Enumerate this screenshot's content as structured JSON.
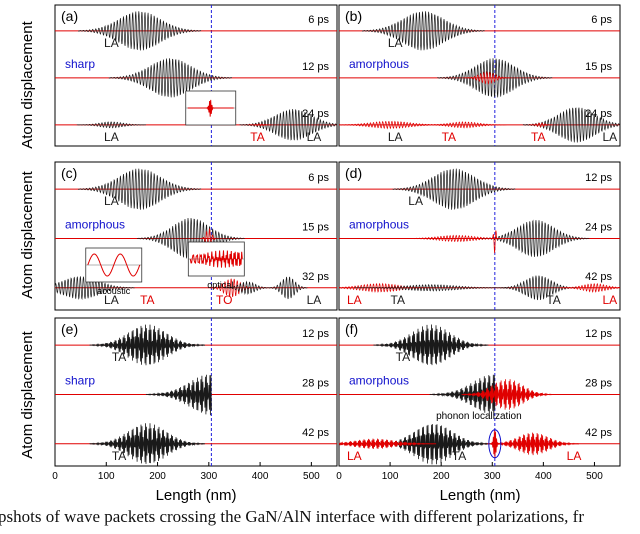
{
  "figure": {
    "y_axis_label": "Atom displacement",
    "x_axis_label": "Length (nm)",
    "caption_fragment": "pshots of wave packets crossing the GaN/AlN interface with different polarizations, fr"
  },
  "colors": {
    "packet": "#1a1a1a",
    "packet_fill": "#555555",
    "red": "#e00000",
    "blue": "#1010cc",
    "interface_line": "#2020dd",
    "axis": "#000000"
  },
  "chart_data": [
    {
      "type": "line",
      "panel": "(a)",
      "interface": "sharp",
      "xlim": [
        0,
        550
      ],
      "xticks": [],
      "x_tick_labels": [],
      "interface_x": 305,
      "rows": [
        {
          "time": "6 ps",
          "labels": [
            {
              "text": "LA",
              "x": 110,
              "color": "black"
            }
          ],
          "packets": [
            {
              "center": 165,
              "width": 160,
              "amp": 1.0,
              "color": "black",
              "kind": "fine"
            }
          ]
        },
        {
          "time": "12 ps",
          "region_label": "sharp",
          "packets": [
            {
              "center": 225,
              "width": 160,
              "amp": 1.0,
              "color": "black",
              "kind": "fine"
            }
          ]
        },
        {
          "time": "24 ps",
          "labels": [
            {
              "text": "LA",
              "x": 110,
              "color": "black"
            },
            {
              "text": "TA",
              "x": 395,
              "color": "red"
            },
            {
              "text": "LA",
              "x": 505,
              "color": "black"
            }
          ],
          "packets": [
            {
              "center": 110,
              "width": 90,
              "amp": 0.15,
              "color": "black",
              "kind": "fine"
            },
            {
              "center": 465,
              "width": 140,
              "amp": 0.8,
              "color": "black",
              "kind": "fine"
            },
            {
              "center": 400,
              "width": 30,
              "amp": 0.05,
              "color": "red",
              "kind": "fine"
            }
          ]
        }
      ],
      "insets": [
        {
          "kind": "spike"
        }
      ]
    },
    {
      "type": "line",
      "panel": "(b)",
      "interface": "amorphous",
      "xlim": [
        0,
        550
      ],
      "xticks": [],
      "x_tick_labels": [],
      "interface_x": 305,
      "rows": [
        {
          "time": "6 ps",
          "labels": [
            {
              "text": "LA",
              "x": 110,
              "color": "black"
            }
          ],
          "packets": [
            {
              "center": 165,
              "width": 160,
              "amp": 1.0,
              "color": "black",
              "kind": "fine"
            }
          ]
        },
        {
          "time": "15 ps",
          "region_label": "amorphous",
          "packets": [
            {
              "center": 305,
              "width": 150,
              "amp": 1.0,
              "color": "black",
              "kind": "fine"
            },
            {
              "center": 290,
              "width": 60,
              "amp": 0.3,
              "color": "red",
              "kind": "fine"
            }
          ]
        },
        {
          "time": "24 ps",
          "labels": [
            {
              "text": "LA",
              "x": 110,
              "color": "black"
            },
            {
              "text": "TA",
              "x": 215,
              "color": "red"
            },
            {
              "text": "TA",
              "x": 390,
              "color": "red"
            },
            {
              "text": "LA",
              "x": 530,
              "color": "black"
            }
          ],
          "packets": [
            {
              "center": 465,
              "width": 140,
              "amp": 0.9,
              "color": "black",
              "kind": "fine"
            },
            {
              "center": 100,
              "width": 150,
              "amp": 0.18,
              "color": "red",
              "kind": "fine"
            },
            {
              "center": 245,
              "width": 110,
              "amp": 0.15,
              "color": "red",
              "kind": "fine"
            },
            {
              "center": 395,
              "width": 30,
              "amp": 0.1,
              "color": "red",
              "kind": "fine"
            }
          ]
        }
      ]
    },
    {
      "type": "line",
      "panel": "(c)",
      "interface": "amorphous",
      "xlim": [
        0,
        550
      ],
      "xticks": [],
      "x_tick_labels": [],
      "interface_x": 305,
      "rows": [
        {
          "time": "6 ps",
          "labels": [
            {
              "text": "LA",
              "x": 110,
              "color": "black"
            }
          ],
          "packets": [
            {
              "center": 165,
              "width": 160,
              "amp": 1.0,
              "color": "black",
              "kind": "fine"
            }
          ]
        },
        {
          "time": "15 ps",
          "region_label": "amorphous",
          "packets": [
            {
              "center": 265,
              "width": 140,
              "amp": 1.0,
              "color": "black",
              "kind": "fine"
            },
            {
              "center": 300,
              "width": 20,
              "amp": 0.5,
              "color": "red",
              "kind": "fine"
            }
          ]
        },
        {
          "time": "32 ps",
          "labels": [
            {
              "text": "LA",
              "x": 110,
              "color": "black"
            },
            {
              "text": "TA",
              "x": 180,
              "color": "red"
            },
            {
              "text": "TO",
              "x": 330,
              "color": "red"
            },
            {
              "text": "LA",
              "x": 505,
              "color": "black"
            }
          ],
          "packets": [
            {
              "center": 50,
              "width": 140,
              "amp": 0.55,
              "color": "black",
              "kind": "fine"
            },
            {
              "center": 345,
              "width": 60,
              "amp": 0.45,
              "color": "red",
              "kind": "fine"
            },
            {
              "center": 375,
              "width": 60,
              "amp": 0.3,
              "color": "black",
              "kind": "fine"
            },
            {
              "center": 455,
              "width": 50,
              "amp": 0.55,
              "color": "black",
              "kind": "fine"
            }
          ]
        }
      ],
      "insets": [
        {
          "label": "acoustic",
          "kind": "sine"
        },
        {
          "label": "optical",
          "kind": "noise"
        }
      ]
    },
    {
      "type": "line",
      "panel": "(d)",
      "interface": "amorphous",
      "xlim": [
        0,
        550
      ],
      "xticks": [],
      "x_tick_labels": [],
      "interface_x": 305,
      "rows": [
        {
          "time": "12 ps",
          "labels": [
            {
              "text": "LA",
              "x": 150,
              "color": "black"
            }
          ],
          "packets": [
            {
              "center": 225,
              "width": 160,
              "amp": 1.0,
              "color": "black",
              "kind": "fine"
            }
          ]
        },
        {
          "time": "24 ps",
          "region_label": "amorphous",
          "packets": [
            {
              "center": 385,
              "width": 140,
              "amp": 0.9,
              "color": "black",
              "kind": "fine"
            },
            {
              "center": 230,
              "width": 140,
              "amp": 0.15,
              "color": "red",
              "kind": "fine"
            },
            {
              "center": 305,
              "width": 8,
              "amp": 0.7,
              "color": "red",
              "kind": "fine"
            }
          ]
        },
        {
          "time": "42 ps",
          "labels": [
            {
              "text": "LA",
              "x": 30,
              "color": "red"
            },
            {
              "text": "TA",
              "x": 115,
              "color": "black"
            },
            {
              "text": "TA",
              "x": 420,
              "color": "black"
            },
            {
              "text": "LA",
              "x": 530,
              "color": "red"
            }
          ],
          "packets": [
            {
              "center": 80,
              "width": 150,
              "amp": 0.2,
              "color": "red",
              "kind": "fine"
            },
            {
              "center": 180,
              "width": 200,
              "amp": 0.15,
              "color": "black",
              "kind": "fine"
            },
            {
              "center": 390,
              "width": 100,
              "amp": 0.6,
              "color": "black",
              "kind": "fine"
            },
            {
              "center": 500,
              "width": 90,
              "amp": 0.2,
              "color": "red",
              "kind": "fine"
            }
          ]
        }
      ]
    },
    {
      "type": "area",
      "panel": "(e)",
      "interface": "sharp",
      "xlim": [
        0,
        550
      ],
      "xticks": [
        0,
        100,
        200,
        300,
        400,
        500
      ],
      "x_tick_labels": [
        "0",
        "100",
        "200",
        "300",
        "400",
        "500"
      ],
      "interface_x": 305,
      "rows": [
        {
          "time": "12 ps",
          "labels": [
            {
              "text": "TA",
              "x": 125,
              "color": "black"
            }
          ],
          "packets": [
            {
              "center": 180,
              "width": 150,
              "amp": 1.0,
              "color": "black",
              "kind": "dense"
            }
          ]
        },
        {
          "time": "28 ps",
          "region_label": "sharp",
          "packets": [
            {
              "center": 305,
              "width": 170,
              "amp": 1.0,
              "color": "black",
              "kind": "dense",
              "cut_at": 305
            }
          ]
        },
        {
          "time": "42 ps",
          "labels": [
            {
              "text": "TA",
              "x": 125,
              "color": "black"
            }
          ],
          "packets": [
            {
              "center": 180,
              "width": 150,
              "amp": 1.0,
              "color": "black",
              "kind": "dense"
            }
          ]
        }
      ]
    },
    {
      "type": "area",
      "panel": "(f)",
      "interface": "amorphous",
      "xlim": [
        0,
        550
      ],
      "xticks": [
        0,
        100,
        200,
        300,
        400,
        500
      ],
      "x_tick_labels": [
        "0",
        "100",
        "200",
        "300",
        "400",
        "500"
      ],
      "interface_x": 305,
      "rows": [
        {
          "time": "12 ps",
          "labels": [
            {
              "text": "TA",
              "x": 125,
              "color": "black"
            }
          ],
          "packets": [
            {
              "center": 180,
              "width": 150,
              "amp": 1.0,
              "color": "black",
              "kind": "dense"
            }
          ]
        },
        {
          "time": "28 ps",
          "region_label": "amorphous",
          "packets": [
            {
              "center": 305,
              "width": 170,
              "amp": 1.0,
              "color": "black",
              "kind": "dense",
              "cut_at": 305
            },
            {
              "center": 330,
              "width": 120,
              "amp": 0.75,
              "color": "red",
              "kind": "dense"
            }
          ]
        },
        {
          "time": "42 ps",
          "labels": [
            {
              "text": "LA",
              "x": 30,
              "color": "red"
            },
            {
              "text": "TA",
              "x": 235,
              "color": "black"
            },
            {
              "text": "LA",
              "x": 460,
              "color": "red"
            }
          ],
          "packets": [
            {
              "center": 185,
              "width": 150,
              "amp": 1.0,
              "color": "black",
              "kind": "dense"
            },
            {
              "center": 70,
              "width": 160,
              "amp": 0.25,
              "color": "red",
              "kind": "dense"
            },
            {
              "center": 380,
              "width": 120,
              "amp": 0.55,
              "color": "red",
              "kind": "dense"
            },
            {
              "center": 305,
              "width": 10,
              "amp": 0.7,
              "color": "red",
              "kind": "dense"
            }
          ]
        }
      ],
      "annotation": "phonon localization"
    }
  ]
}
